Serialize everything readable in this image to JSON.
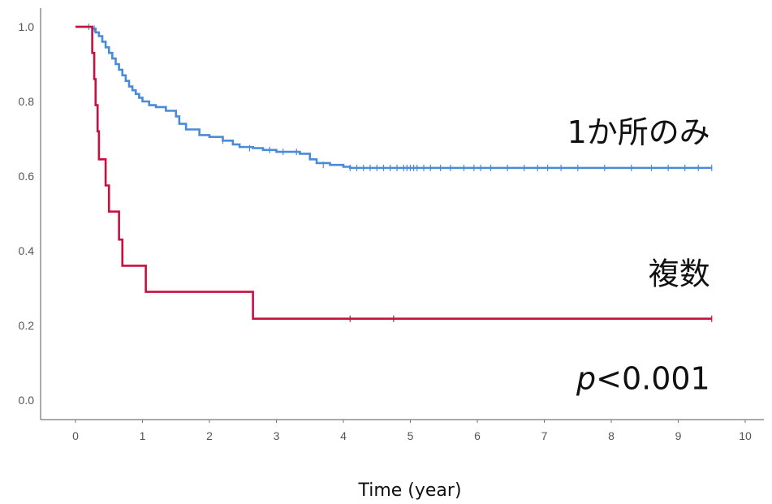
{
  "chart_data": {
    "type": "line",
    "title": "",
    "xlabel": "Time (year)",
    "ylabel": "",
    "xlim": [
      0,
      10
    ],
    "ylim": [
      0,
      1
    ],
    "xticks": [
      "0",
      "1",
      "2",
      "3",
      "4",
      "5",
      "6",
      "7",
      "8",
      "9",
      "10"
    ],
    "yticks": [
      "0.0",
      "0.2",
      "0.4",
      "0.6",
      "0.8",
      "1.0"
    ],
    "grid": false,
    "legend": "none",
    "series": [
      {
        "name": "1か所のみ",
        "color": "#4a8ad6",
        "steps": [
          [
            0,
            1.0
          ],
          [
            0.25,
            0.995
          ],
          [
            0.3,
            0.985
          ],
          [
            0.35,
            0.975
          ],
          [
            0.4,
            0.96
          ],
          [
            0.45,
            0.945
          ],
          [
            0.5,
            0.93
          ],
          [
            0.55,
            0.915
          ],
          [
            0.6,
            0.9
          ],
          [
            0.65,
            0.885
          ],
          [
            0.7,
            0.87
          ],
          [
            0.75,
            0.855
          ],
          [
            0.8,
            0.84
          ],
          [
            0.85,
            0.83
          ],
          [
            0.9,
            0.82
          ],
          [
            0.95,
            0.81
          ],
          [
            1.0,
            0.8
          ],
          [
            1.1,
            0.79
          ],
          [
            1.2,
            0.785
          ],
          [
            1.35,
            0.775
          ],
          [
            1.5,
            0.76
          ],
          [
            1.55,
            0.74
          ],
          [
            1.65,
            0.725
          ],
          [
            1.85,
            0.71
          ],
          [
            2.0,
            0.705
          ],
          [
            2.2,
            0.695
          ],
          [
            2.35,
            0.685
          ],
          [
            2.45,
            0.678
          ],
          [
            2.65,
            0.675
          ],
          [
            2.8,
            0.67
          ],
          [
            3.0,
            0.665
          ],
          [
            3.2,
            0.665
          ],
          [
            3.35,
            0.66
          ],
          [
            3.5,
            0.645
          ],
          [
            3.6,
            0.635
          ],
          [
            3.8,
            0.63
          ],
          [
            4.0,
            0.625
          ],
          [
            4.1,
            0.622
          ],
          [
            9.5,
            0.622
          ]
        ],
        "censored": [
          [
            0.2,
            1.0
          ],
          [
            0.28,
            0.995
          ],
          [
            2.2,
            0.695
          ],
          [
            2.6,
            0.675
          ],
          [
            2.9,
            0.67
          ],
          [
            3.1,
            0.665
          ],
          [
            3.3,
            0.665
          ],
          [
            3.7,
            0.63
          ],
          [
            4.1,
            0.622
          ],
          [
            4.2,
            0.622
          ],
          [
            4.3,
            0.622
          ],
          [
            4.4,
            0.622
          ],
          [
            4.5,
            0.622
          ],
          [
            4.6,
            0.622
          ],
          [
            4.7,
            0.622
          ],
          [
            4.8,
            0.622
          ],
          [
            4.9,
            0.622
          ],
          [
            4.95,
            0.622
          ],
          [
            5.0,
            0.622
          ],
          [
            5.05,
            0.622
          ],
          [
            5.1,
            0.622
          ],
          [
            5.2,
            0.622
          ],
          [
            5.3,
            0.622
          ],
          [
            5.45,
            0.622
          ],
          [
            5.6,
            0.622
          ],
          [
            5.8,
            0.622
          ],
          [
            5.95,
            0.622
          ],
          [
            6.05,
            0.622
          ],
          [
            6.2,
            0.622
          ],
          [
            6.45,
            0.622
          ],
          [
            6.7,
            0.622
          ],
          [
            6.9,
            0.622
          ],
          [
            7.05,
            0.622
          ],
          [
            7.25,
            0.622
          ],
          [
            7.5,
            0.622
          ],
          [
            7.9,
            0.622
          ],
          [
            8.3,
            0.622
          ],
          [
            8.6,
            0.622
          ],
          [
            8.85,
            0.622
          ],
          [
            9.1,
            0.622
          ],
          [
            9.3,
            0.622
          ],
          [
            9.5,
            0.622
          ]
        ]
      },
      {
        "name": "複数",
        "color": "#c8103e",
        "steps": [
          [
            0,
            1.0
          ],
          [
            0.2,
            1.0
          ],
          [
            0.25,
            0.93
          ],
          [
            0.28,
            0.86
          ],
          [
            0.3,
            0.79
          ],
          [
            0.33,
            0.72
          ],
          [
            0.35,
            0.645
          ],
          [
            0.45,
            0.575
          ],
          [
            0.5,
            0.505
          ],
          [
            0.65,
            0.43
          ],
          [
            0.7,
            0.36
          ],
          [
            1.05,
            0.29
          ],
          [
            2.65,
            0.218
          ],
          [
            9.5,
            0.218
          ]
        ],
        "censored": [
          [
            4.1,
            0.218
          ],
          [
            4.75,
            0.218
          ],
          [
            9.5,
            0.218
          ]
        ]
      }
    ],
    "annotations": [
      {
        "text": "1か所のみ",
        "x": 9.5,
        "y": 0.72,
        "align": "right"
      },
      {
        "text": "複数",
        "x": 9.5,
        "y": 0.34,
        "align": "right"
      },
      {
        "text_italic": "p",
        "text": "<0.001",
        "x": 9.5,
        "y": 0.06,
        "align": "right"
      }
    ]
  }
}
